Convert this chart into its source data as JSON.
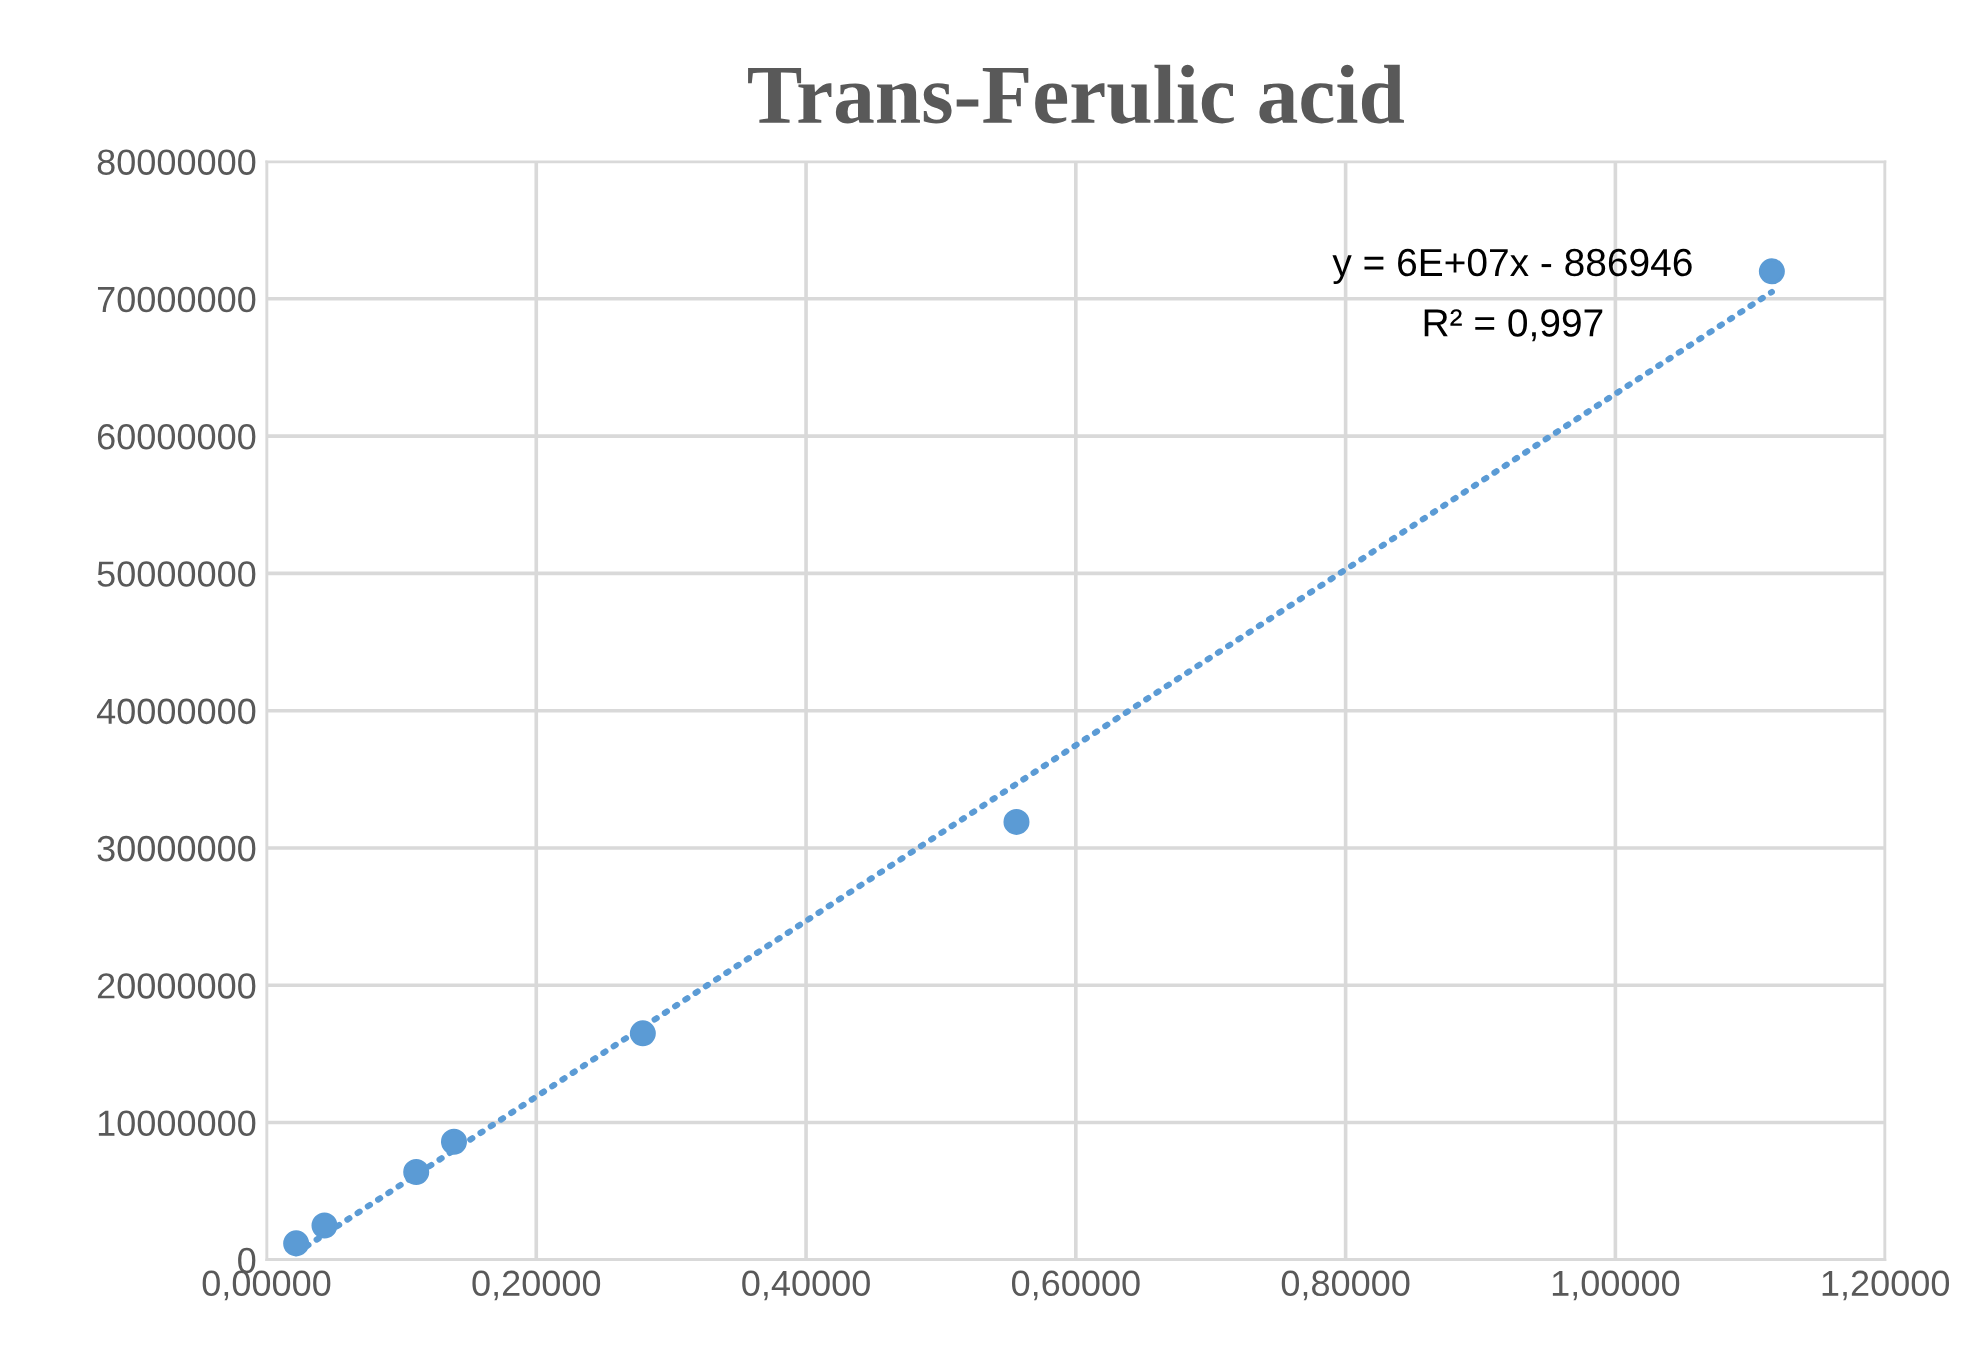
{
  "chart_data": {
    "type": "scatter",
    "title": "Trans-Ferulic acid",
    "series": [
      {
        "color": "#5b9bd5",
        "marker": "circle",
        "x": [
          0.022,
          0.043,
          0.111,
          0.139,
          0.279,
          0.556,
          1.116
        ],
        "values": [
          1200000,
          2500000,
          6400000,
          8600000,
          16500000,
          31900000,
          72000000
        ]
      },
      {
        "type": "line",
        "color": "#5b9bd5",
        "line_style": "dotted",
        "marker": "none",
        "x": [
          0.022,
          1.116
        ],
        "values": [
          500000,
          70500000
        ]
      }
    ],
    "annotations": [
      "y = 6E+07x - 886946",
      "R² = 0,997"
    ],
    "xlim": [
      0,
      1.2
    ],
    "xticks": [
      {
        "value": 0,
        "label": "0,00000"
      },
      {
        "value": 0.2,
        "label": "0,20000"
      },
      {
        "value": 0.4,
        "label": "0,40000"
      },
      {
        "value": 0.6,
        "label": "0,60000"
      },
      {
        "value": 0.8,
        "label": "0,80000"
      },
      {
        "value": 1.0,
        "label": "1,00000"
      },
      {
        "value": 1.2,
        "label": "1,20000"
      }
    ],
    "ylim": [
      0,
      80000000
    ],
    "yticks": [
      0,
      10000000,
      20000000,
      30000000,
      40000000,
      50000000,
      60000000,
      70000000,
      80000000
    ],
    "grid": true,
    "legend": false
  }
}
